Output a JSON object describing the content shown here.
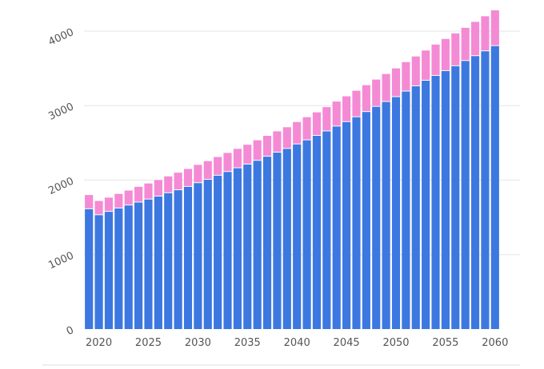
{
  "chart_data": {
    "type": "bar",
    "stacked": true,
    "grid": true,
    "ylim": [
      0,
      4300
    ],
    "y_ticks": [
      0,
      1000,
      2000,
      3000,
      4000
    ],
    "y_tick_labels": [
      "0",
      "1000",
      "2000",
      "3000",
      "4000"
    ],
    "x_tick_labels": [
      "2020",
      "2025",
      "2030",
      "2035",
      "2040",
      "2045",
      "2050",
      "2055",
      "2060"
    ],
    "x_tick_years": [
      2020,
      2025,
      2030,
      2035,
      2040,
      2045,
      2050,
      2055,
      2060
    ],
    "categories": [
      2019,
      2020,
      2021,
      2022,
      2023,
      2024,
      2025,
      2026,
      2027,
      2028,
      2029,
      2030,
      2031,
      2032,
      2033,
      2034,
      2035,
      2036,
      2037,
      2038,
      2039,
      2040,
      2041,
      2042,
      2043,
      2044,
      2045,
      2046,
      2047,
      2048,
      2049,
      2050,
      2051,
      2052,
      2053,
      2054,
      2055,
      2056,
      2057,
      2058,
      2059,
      2060
    ],
    "series": [
      {
        "color": "#3c78e0",
        "values": [
          1610,
          1530,
          1575,
          1620,
          1660,
          1700,
          1740,
          1780,
          1825,
          1865,
          1910,
          1960,
          2005,
          2060,
          2110,
          2160,
          2210,
          2260,
          2315,
          2370,
          2420,
          2480,
          2535,
          2595,
          2655,
          2720,
          2780,
          2845,
          2915,
          2985,
          3050,
          3115,
          3190,
          3260,
          3335,
          3400,
          3465,
          3530,
          3600,
          3665,
          3730,
          3800
        ]
      },
      {
        "color": "#f48ad4",
        "values": [
          190,
          190,
          190,
          195,
          200,
          210,
          215,
          220,
          225,
          235,
          240,
          245,
          250,
          250,
          255,
          260,
          265,
          275,
          280,
          285,
          290,
          300,
          310,
          315,
          325,
          335,
          345,
          355,
          360,
          365,
          375,
          385,
          395,
          400,
          405,
          420,
          430,
          440,
          445,
          460,
          470,
          480
        ]
      }
    ]
  }
}
